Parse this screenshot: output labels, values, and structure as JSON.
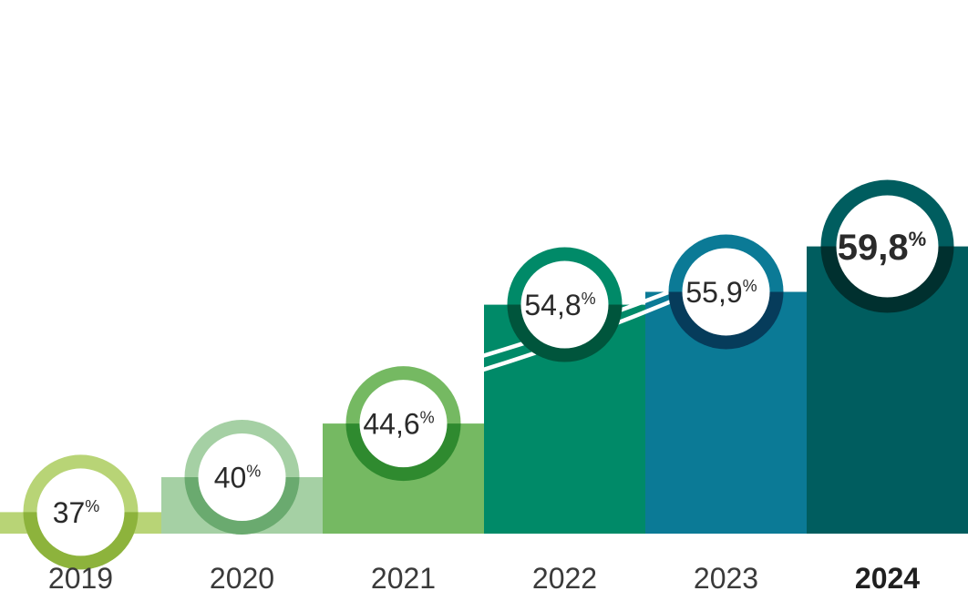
{
  "chart_data": {
    "type": "bar",
    "categories": [
      "2019",
      "2020",
      "2021",
      "2022",
      "2023",
      "2024"
    ],
    "values": [
      37,
      40,
      44.6,
      54.8,
      55.9,
      59.8
    ],
    "value_labels": [
      "37",
      "40",
      "44,6",
      "54,8",
      "55,9",
      "59,8"
    ],
    "unit": "%",
    "highlight_category": "2024",
    "colors": {
      "bars": [
        "#b8d476",
        "#a5d0a4",
        "#75b962",
        "#008a68",
        "#0b7a96",
        "#005d5f"
      ],
      "ring_light": [
        "#b8d476",
        "#a5d0a4",
        "#75b962",
        "#008a68",
        "#0b7a96",
        "#005d5f"
      ],
      "ring_dark": [
        "#8db33c",
        "#6aaa6f",
        "#2f8a2f",
        "#00553c",
        "#063c5b",
        "#00302f"
      ],
      "label_text": "#2a2a2a",
      "arrow": "#ffffff"
    },
    "ylim": [
      0,
      65
    ],
    "grid": false,
    "legend": "none",
    "annotation": "white trend arrow rising from left to right"
  }
}
